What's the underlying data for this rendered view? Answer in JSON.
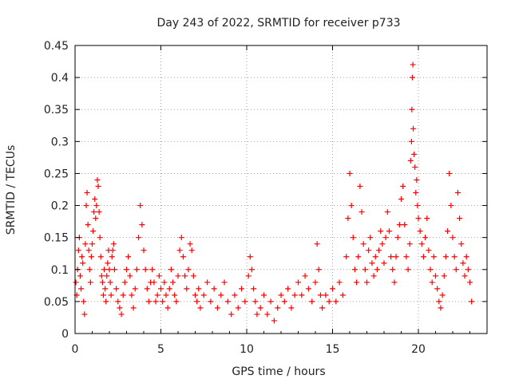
{
  "chart_data": {
    "type": "scatter",
    "title": "Day 243 of 2022, SRMTID for receiver p733",
    "xlabel": "GPS time / hours",
    "ylabel": "SRMTID / TECUs",
    "xlim": [
      0,
      24
    ],
    "ylim": [
      0,
      0.45
    ],
    "xticks": [
      0,
      5,
      10,
      15,
      20
    ],
    "xtick_labels": [
      "0",
      "5",
      "10",
      "15",
      "20"
    ],
    "yticks": [
      0,
      0.05,
      0.1,
      0.15,
      0.2,
      0.25,
      0.3,
      0.35,
      0.4,
      0.45
    ],
    "ytick_labels": [
      "0",
      "0.05",
      "0.1",
      "0.15",
      "0.2",
      "0.25",
      "0.3",
      "0.35",
      "0.4",
      "0.45"
    ],
    "grid": true,
    "marker": "+",
    "series_color": "#ff0000",
    "series": [
      {
        "name": "SRMTID",
        "points": [
          [
            0.05,
            0.08
          ],
          [
            0.1,
            0.06
          ],
          [
            0.15,
            0.1
          ],
          [
            0.2,
            0.13
          ],
          [
            0.25,
            0.15
          ],
          [
            0.3,
            0.09
          ],
          [
            0.35,
            0.07
          ],
          [
            0.4,
            0.12
          ],
          [
            0.45,
            0.11
          ],
          [
            0.5,
            0.05
          ],
          [
            0.55,
            0.03
          ],
          [
            0.6,
            0.14
          ],
          [
            0.65,
            0.2
          ],
          [
            0.7,
            0.22
          ],
          [
            0.75,
            0.17
          ],
          [
            0.8,
            0.13
          ],
          [
            0.85,
            0.1
          ],
          [
            0.9,
            0.08
          ],
          [
            0.95,
            0.12
          ],
          [
            1.0,
            0.14
          ],
          [
            1.05,
            0.16
          ],
          [
            1.1,
            0.19
          ],
          [
            1.15,
            0.21
          ],
          [
            1.2,
            0.18
          ],
          [
            1.25,
            0.2
          ],
          [
            1.3,
            0.24
          ],
          [
            1.35,
            0.23
          ],
          [
            1.4,
            0.19
          ],
          [
            1.45,
            0.15
          ],
          [
            1.5,
            0.12
          ],
          [
            1.55,
            0.09
          ],
          [
            1.6,
            0.08
          ],
          [
            1.65,
            0.06
          ],
          [
            1.7,
            0.1
          ],
          [
            1.75,
            0.07
          ],
          [
            1.8,
            0.05
          ],
          [
            1.85,
            0.09
          ],
          [
            1.9,
            0.11
          ],
          [
            1.95,
            0.13
          ],
          [
            2.0,
            0.1
          ],
          [
            2.05,
            0.08
          ],
          [
            2.1,
            0.06
          ],
          [
            2.15,
            0.12
          ],
          [
            2.2,
            0.13
          ],
          [
            2.25,
            0.14
          ],
          [
            2.3,
            0.1
          ],
          [
            2.4,
            0.07
          ],
          [
            2.5,
            0.05
          ],
          [
            2.6,
            0.04
          ],
          [
            2.7,
            0.03
          ],
          [
            2.8,
            0.06
          ],
          [
            2.9,
            0.08
          ],
          [
            3.0,
            0.1
          ],
          [
            3.1,
            0.12
          ],
          [
            3.2,
            0.09
          ],
          [
            3.3,
            0.06
          ],
          [
            3.4,
            0.04
          ],
          [
            3.5,
            0.07
          ],
          [
            3.6,
            0.1
          ],
          [
            3.7,
            0.15
          ],
          [
            3.8,
            0.2
          ],
          [
            3.9,
            0.17
          ],
          [
            4.0,
            0.13
          ],
          [
            4.1,
            0.1
          ],
          [
            4.2,
            0.07
          ],
          [
            4.3,
            0.05
          ],
          [
            4.4,
            0.08
          ],
          [
            4.5,
            0.1
          ],
          [
            4.6,
            0.08
          ],
          [
            4.7,
            0.05
          ],
          [
            4.8,
            0.06
          ],
          [
            4.9,
            0.09
          ],
          [
            5.0,
            0.07
          ],
          [
            5.1,
            0.05
          ],
          [
            5.2,
            0.08
          ],
          [
            5.3,
            0.06
          ],
          [
            5.4,
            0.04
          ],
          [
            5.5,
            0.07
          ],
          [
            5.6,
            0.1
          ],
          [
            5.7,
            0.08
          ],
          [
            5.8,
            0.06
          ],
          [
            5.9,
            0.05
          ],
          [
            6.0,
            0.09
          ],
          [
            6.1,
            0.13
          ],
          [
            6.2,
            0.15
          ],
          [
            6.3,
            0.12
          ],
          [
            6.4,
            0.09
          ],
          [
            6.5,
            0.07
          ],
          [
            6.6,
            0.1
          ],
          [
            6.7,
            0.14
          ],
          [
            6.8,
            0.13
          ],
          [
            6.9,
            0.09
          ],
          [
            7.0,
            0.06
          ],
          [
            7.1,
            0.05
          ],
          [
            7.2,
            0.07
          ],
          [
            7.3,
            0.04
          ],
          [
            7.5,
            0.06
          ],
          [
            7.7,
            0.08
          ],
          [
            7.9,
            0.05
          ],
          [
            8.1,
            0.07
          ],
          [
            8.3,
            0.04
          ],
          [
            8.5,
            0.06
          ],
          [
            8.7,
            0.08
          ],
          [
            8.9,
            0.05
          ],
          [
            9.1,
            0.03
          ],
          [
            9.3,
            0.06
          ],
          [
            9.5,
            0.04
          ],
          [
            9.7,
            0.07
          ],
          [
            9.9,
            0.05
          ],
          [
            10.1,
            0.09
          ],
          [
            10.2,
            0.12
          ],
          [
            10.3,
            0.1
          ],
          [
            10.4,
            0.07
          ],
          [
            10.5,
            0.05
          ],
          [
            10.6,
            0.03
          ],
          [
            10.8,
            0.04
          ],
          [
            11.0,
            0.06
          ],
          [
            11.2,
            0.03
          ],
          [
            11.4,
            0.05
          ],
          [
            11.6,
            0.02
          ],
          [
            11.8,
            0.04
          ],
          [
            12.0,
            0.06
          ],
          [
            12.2,
            0.05
          ],
          [
            12.4,
            0.07
          ],
          [
            12.6,
            0.04
          ],
          [
            12.8,
            0.06
          ],
          [
            13.0,
            0.08
          ],
          [
            13.2,
            0.06
          ],
          [
            13.4,
            0.09
          ],
          [
            13.6,
            0.07
          ],
          [
            13.8,
            0.05
          ],
          [
            14.0,
            0.08
          ],
          [
            14.1,
            0.14
          ],
          [
            14.2,
            0.1
          ],
          [
            14.3,
            0.06
          ],
          [
            14.4,
            0.04
          ],
          [
            14.6,
            0.06
          ],
          [
            14.8,
            0.05
          ],
          [
            15.0,
            0.07
          ],
          [
            15.2,
            0.05
          ],
          [
            15.4,
            0.08
          ],
          [
            15.6,
            0.06
          ],
          [
            15.8,
            0.12
          ],
          [
            15.9,
            0.18
          ],
          [
            16.0,
            0.25
          ],
          [
            16.1,
            0.2
          ],
          [
            16.2,
            0.15
          ],
          [
            16.3,
            0.1
          ],
          [
            16.4,
            0.08
          ],
          [
            16.5,
            0.12
          ],
          [
            16.6,
            0.23
          ],
          [
            16.7,
            0.19
          ],
          [
            16.8,
            0.14
          ],
          [
            16.9,
            0.1
          ],
          [
            17.0,
            0.08
          ],
          [
            17.1,
            0.13
          ],
          [
            17.2,
            0.15
          ],
          [
            17.3,
            0.11
          ],
          [
            17.4,
            0.09
          ],
          [
            17.5,
            0.12
          ],
          [
            17.6,
            0.1
          ],
          [
            17.7,
            0.13
          ],
          [
            17.8,
            0.16
          ],
          [
            17.9,
            0.14
          ],
          [
            18.0,
            0.11
          ],
          [
            18.1,
            0.15
          ],
          [
            18.2,
            0.19
          ],
          [
            18.3,
            0.16
          ],
          [
            18.4,
            0.12
          ],
          [
            18.5,
            0.1
          ],
          [
            18.6,
            0.08
          ],
          [
            18.7,
            0.12
          ],
          [
            18.8,
            0.15
          ],
          [
            18.9,
            0.17
          ],
          [
            19.0,
            0.21
          ],
          [
            19.1,
            0.23
          ],
          [
            19.2,
            0.17
          ],
          [
            19.3,
            0.12
          ],
          [
            19.4,
            0.1
          ],
          [
            19.5,
            0.14
          ],
          [
            19.55,
            0.27
          ],
          [
            19.6,
            0.3
          ],
          [
            19.62,
            0.35
          ],
          [
            19.65,
            0.4
          ],
          [
            19.68,
            0.42
          ],
          [
            19.7,
            0.32
          ],
          [
            19.75,
            0.28
          ],
          [
            19.8,
            0.26
          ],
          [
            19.85,
            0.22
          ],
          [
            19.9,
            0.24
          ],
          [
            19.95,
            0.2
          ],
          [
            20.0,
            0.18
          ],
          [
            20.1,
            0.16
          ],
          [
            20.2,
            0.14
          ],
          [
            20.3,
            0.12
          ],
          [
            20.4,
            0.15
          ],
          [
            20.5,
            0.18
          ],
          [
            20.6,
            0.13
          ],
          [
            20.7,
            0.1
          ],
          [
            20.8,
            0.08
          ],
          [
            20.9,
            0.12
          ],
          [
            21.0,
            0.09
          ],
          [
            21.1,
            0.07
          ],
          [
            21.2,
            0.05
          ],
          [
            21.3,
            0.04
          ],
          [
            21.4,
            0.06
          ],
          [
            21.5,
            0.09
          ],
          [
            21.6,
            0.12
          ],
          [
            21.7,
            0.16
          ],
          [
            21.8,
            0.25
          ],
          [
            21.9,
            0.2
          ],
          [
            22.0,
            0.15
          ],
          [
            22.1,
            0.12
          ],
          [
            22.2,
            0.1
          ],
          [
            22.3,
            0.22
          ],
          [
            22.4,
            0.18
          ],
          [
            22.5,
            0.14
          ],
          [
            22.6,
            0.11
          ],
          [
            22.7,
            0.09
          ],
          [
            22.8,
            0.12
          ],
          [
            22.9,
            0.1
          ],
          [
            23.0,
            0.08
          ],
          [
            23.1,
            0.05
          ]
        ]
      }
    ]
  }
}
